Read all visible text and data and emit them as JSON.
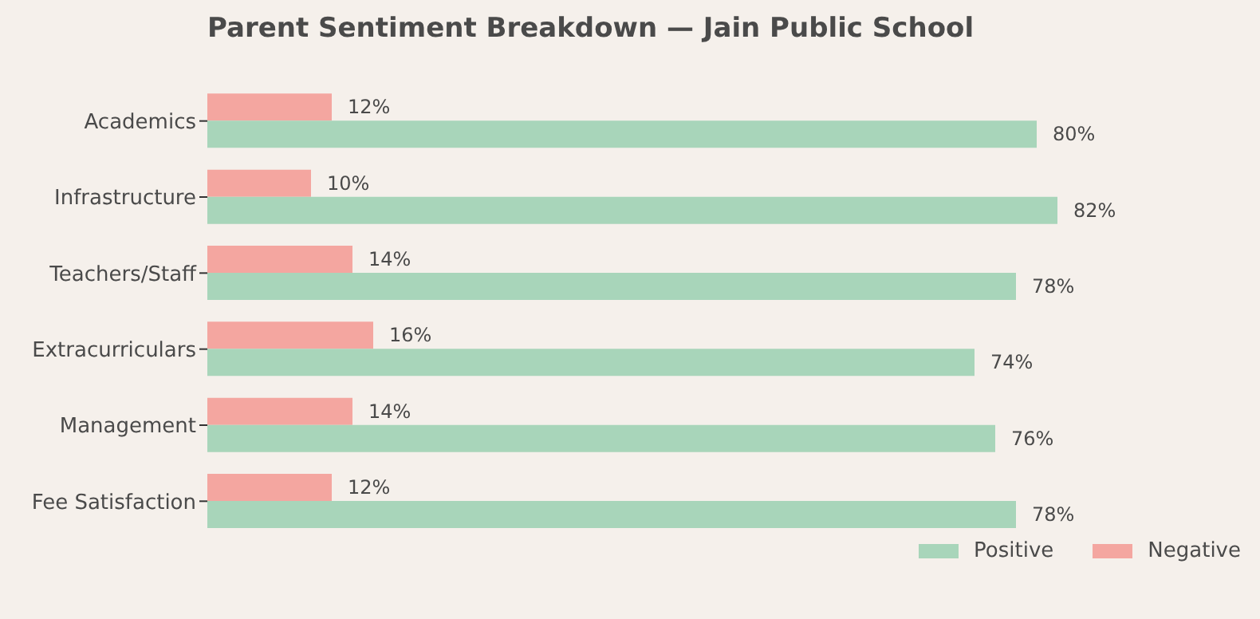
{
  "chart_data": {
    "type": "bar",
    "orientation": "horizontal",
    "title": "Parent Sentiment Breakdown — Jain Public School",
    "categories": [
      "Academics",
      "Infrastructure",
      "Teachers/Staff",
      "Extracurriculars",
      "Management",
      "Fee Satisfaction"
    ],
    "series": [
      {
        "name": "Positive",
        "color": "#a8d5ba",
        "values": [
          80,
          82,
          78,
          74,
          76,
          78
        ],
        "value_labels": [
          "80%",
          "82%",
          "78%",
          "74%",
          "76%",
          "78%"
        ]
      },
      {
        "name": "Negative",
        "color": "#f4a6a0",
        "values": [
          12,
          10,
          14,
          16,
          14,
          12
        ],
        "value_labels": [
          "12%",
          "10%",
          "14%",
          "16%",
          "14%",
          "12%"
        ]
      }
    ],
    "tick_labels": "y",
    "grid": false,
    "legend": "bottom right"
  }
}
